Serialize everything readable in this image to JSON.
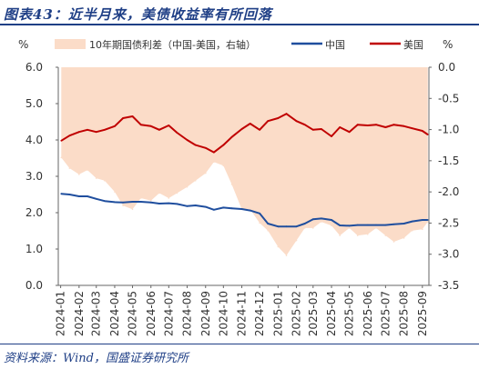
{
  "title": "图表43：近半月来，美债收益率有所回落",
  "source": "资料来源：Wind，国盛证券研究所",
  "colors": {
    "spread": "#fbdcc8",
    "china": "#1f4e9e",
    "us": "#c00000",
    "brand": "#1f3f86"
  },
  "chart_data": {
    "type": "line",
    "left_axis": {
      "unit_label": "%",
      "ylim": [
        0,
        6
      ],
      "ticks": [
        "0.0",
        "1.0",
        "2.0",
        "3.0",
        "4.0",
        "5.0",
        "6.0"
      ]
    },
    "right_axis": {
      "unit_label": "%",
      "ylim": [
        -3.5,
        0
      ],
      "ticks": [
        "-3.5",
        "-3.0",
        "-2.5",
        "-2.0",
        "-1.5",
        "-1.0",
        "-0.5",
        "0.0"
      ]
    },
    "x_ticks": [
      "2024-01",
      "2024-02",
      "2024-03",
      "2024-04",
      "2024-05",
      "2024-06",
      "2024-07",
      "2024-08",
      "2024-09",
      "2024-10",
      "2024-11",
      "2024-12",
      "2025-01",
      "2025-02",
      "2025-03",
      "2025-04",
      "2025-05",
      "2025-06",
      "2025-07",
      "2025-08",
      "2025-09"
    ],
    "grid": false,
    "legend_position": "top",
    "x": [
      "2024-01-02",
      "2024-01-16",
      "2024-02-01",
      "2024-02-15",
      "2024-03-01",
      "2024-03-15",
      "2024-04-01",
      "2024-04-15",
      "2024-05-01",
      "2024-05-15",
      "2024-06-01",
      "2024-06-15",
      "2024-07-01",
      "2024-07-15",
      "2024-08-01",
      "2024-08-15",
      "2024-09-01",
      "2024-09-15",
      "2024-10-01",
      "2024-10-15",
      "2024-11-01",
      "2024-11-15",
      "2024-12-01",
      "2024-12-15",
      "2025-01-01",
      "2025-01-15",
      "2025-02-01",
      "2025-02-15",
      "2025-03-01",
      "2025-03-15",
      "2025-04-01",
      "2025-04-15",
      "2025-05-01",
      "2025-05-15",
      "2025-06-01",
      "2025-06-15",
      "2025-07-01",
      "2025-07-15",
      "2025-08-01",
      "2025-08-15",
      "2025-09-01",
      "2025-09-10"
    ],
    "series": [
      {
        "name": "10年期国债利差（中国-美国，右轴）",
        "type": "area",
        "axis": "right",
        "values": [
          -1.45,
          -1.62,
          -1.72,
          -1.65,
          -1.78,
          -1.82,
          -2.0,
          -2.22,
          -2.28,
          -2.1,
          -2.14,
          -2.02,
          -2.1,
          -2.02,
          -1.92,
          -1.82,
          -1.7,
          -1.52,
          -1.58,
          -1.88,
          -2.28,
          -2.28,
          -2.5,
          -2.62,
          -2.88,
          -3.02,
          -2.78,
          -2.58,
          -2.58,
          -2.48,
          -2.54,
          -2.7,
          -2.58,
          -2.7,
          -2.68,
          -2.58,
          -2.7,
          -2.8,
          -2.74,
          -2.62,
          -2.6,
          -2.48
        ]
      },
      {
        "name": "中国",
        "type": "line",
        "axis": "left",
        "values": [
          2.52,
          2.5,
          2.45,
          2.45,
          2.38,
          2.32,
          2.29,
          2.28,
          2.3,
          2.3,
          2.28,
          2.25,
          2.26,
          2.24,
          2.18,
          2.2,
          2.16,
          2.08,
          2.14,
          2.12,
          2.1,
          2.06,
          1.98,
          1.7,
          1.62,
          1.62,
          1.62,
          1.7,
          1.82,
          1.84,
          1.8,
          1.65,
          1.64,
          1.66,
          1.66,
          1.66,
          1.66,
          1.68,
          1.7,
          1.76,
          1.8,
          1.8
        ]
      },
      {
        "name": "美国",
        "type": "line",
        "axis": "left",
        "values": [
          3.98,
          4.12,
          4.22,
          4.28,
          4.22,
          4.28,
          4.38,
          4.6,
          4.65,
          4.42,
          4.38,
          4.28,
          4.4,
          4.2,
          4.0,
          3.86,
          3.78,
          3.66,
          3.86,
          4.08,
          4.3,
          4.45,
          4.28,
          4.52,
          4.6,
          4.72,
          4.52,
          4.42,
          4.28,
          4.3,
          4.1,
          4.35,
          4.22,
          4.42,
          4.4,
          4.42,
          4.35,
          4.42,
          4.38,
          4.32,
          4.25,
          4.15
        ]
      }
    ]
  }
}
